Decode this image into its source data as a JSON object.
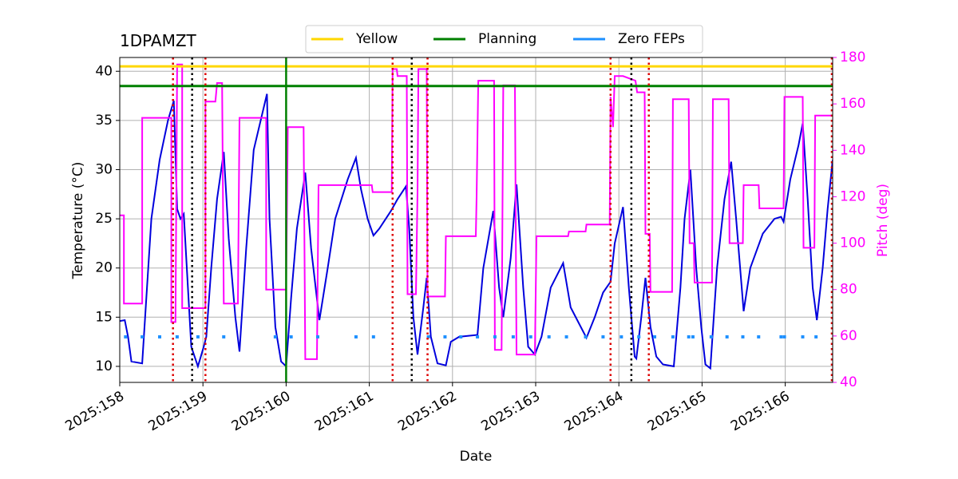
{
  "chart_data": {
    "type": "line",
    "title": "1DPAMZT",
    "xlabel": "Date",
    "ylabel": "Temperature (°C)",
    "y2label": "Pitch (deg)",
    "xlim": [
      158,
      166.57
    ],
    "ylim": [
      8.37,
      41.4
    ],
    "y2lim": [
      40,
      180
    ],
    "xticks": [
      {
        "value": 158,
        "label": "2025:158"
      },
      {
        "value": 159,
        "label": "2025:159"
      },
      {
        "value": 160,
        "label": "2025:160"
      },
      {
        "value": 161,
        "label": "2025:161"
      },
      {
        "value": 162,
        "label": "2025:162"
      },
      {
        "value": 163,
        "label": "2025:163"
      },
      {
        "value": 164,
        "label": "2025:164"
      },
      {
        "value": 165,
        "label": "2025:165"
      },
      {
        "value": 166,
        "label": "2025:166"
      }
    ],
    "yticks": [
      10,
      15,
      20,
      25,
      30,
      35,
      40
    ],
    "y2ticks": [
      40,
      60,
      80,
      100,
      120,
      140,
      160,
      180
    ],
    "grid": true,
    "legend": "top",
    "series": [
      {
        "color": "#0000dd",
        "x": [
          158.0,
          158.06,
          158.1,
          158.14,
          158.27,
          158.38,
          158.48,
          158.58,
          158.65,
          158.69,
          158.73,
          158.77,
          158.82,
          158.86,
          158.94,
          159.01,
          159.04,
          159.1,
          159.17,
          159.25,
          159.31,
          159.39,
          159.44,
          159.52,
          159.61,
          159.77,
          159.8,
          159.87,
          159.94,
          160.0,
          160.06,
          160.13,
          160.23,
          160.3,
          160.4,
          160.5,
          160.59,
          160.74,
          160.84,
          160.9,
          160.98,
          161.05,
          161.12,
          161.26,
          161.34,
          161.44,
          161.48,
          161.53,
          161.58,
          161.65,
          161.69,
          161.74,
          161.82,
          161.92,
          161.98,
          162.08,
          162.3,
          162.37,
          162.49,
          162.56,
          162.61,
          162.7,
          162.77,
          162.85,
          162.91,
          162.99,
          163.07,
          163.18,
          163.33,
          163.42,
          163.61,
          163.71,
          163.81,
          163.9,
          163.95,
          164.05,
          164.12,
          164.19,
          164.21,
          164.27,
          164.32,
          164.38,
          164.45,
          164.53,
          164.66,
          164.74,
          164.79,
          164.86,
          164.93,
          164.99,
          165.04,
          165.1,
          165.18,
          165.27,
          165.35,
          165.41,
          165.5,
          165.58,
          165.73,
          165.87,
          165.95,
          165.98,
          166.06,
          166.16,
          166.21,
          166.27,
          166.33,
          166.38,
          166.45,
          166.51,
          166.57
        ],
        "values": [
          14.6,
          14.7,
          13,
          10.5,
          10.3,
          25,
          31,
          35,
          37,
          26,
          25,
          25.5,
          18,
          12,
          10,
          12,
          13,
          20,
          27,
          31.8,
          23,
          15,
          11.5,
          22,
          32,
          37.7,
          25,
          14,
          10.5,
          10,
          17,
          24,
          29.7,
          22,
          14.7,
          20,
          25,
          29,
          31.2,
          28,
          25,
          23.3,
          24,
          25.8,
          27,
          28.3,
          24,
          15,
          11.2,
          16,
          19,
          13,
          10.3,
          10.1,
          12.5,
          13,
          13.2,
          20,
          25.8,
          18,
          15,
          21,
          28.5,
          18,
          12,
          11.2,
          13,
          18,
          20.5,
          16,
          12.9,
          15,
          17.5,
          18.6,
          22.5,
          26.2,
          18,
          11,
          10.8,
          15,
          19,
          14,
          11,
          10.2,
          10,
          18,
          25,
          30,
          20,
          14,
          10.2,
          9.8,
          20,
          27,
          30.8,
          25,
          15.6,
          20,
          23.5,
          25,
          25.2,
          24.7,
          29,
          32.5,
          34.7,
          27,
          18,
          14.7,
          20,
          26,
          31
        ]
      },
      {
        "color": "#ff00ff",
        "axis": "y2",
        "x": [
          158.0,
          158.05,
          158.05,
          158.27,
          158.27,
          158.62,
          158.62,
          158.67,
          158.69,
          158.75,
          158.75,
          159.03,
          159.03,
          159.15,
          159.17,
          159.23,
          159.25,
          159.42,
          159.44,
          159.76,
          159.76,
          160.0,
          160.02,
          160.21,
          160.23,
          160.37,
          160.39,
          161.03,
          161.04,
          161.27,
          161.28,
          161.33,
          161.34,
          161.45,
          161.46,
          161.56,
          161.58,
          161.59,
          161.69,
          161.7,
          161.91,
          161.92,
          162.28,
          162.29,
          162.31,
          162.5,
          162.51,
          162.59,
          162.61,
          162.75,
          162.77,
          162.99,
          163.01,
          163.39,
          163.4,
          163.6,
          163.61,
          163.89,
          163.9,
          163.93,
          163.95,
          164.05,
          164.2,
          164.22,
          164.31,
          164.32,
          164.37,
          164.38,
          164.64,
          164.65,
          164.84,
          164.85,
          164.9,
          164.91,
          165.12,
          165.13,
          165.32,
          165.33,
          165.49,
          165.5,
          165.68,
          165.69,
          165.98,
          165.99,
          166.21,
          166.22,
          166.35,
          166.36,
          166.57
        ],
        "values": [
          112,
          112,
          74,
          74,
          154,
          154,
          66,
          66,
          177,
          177,
          72,
          72,
          161,
          161,
          169,
          169,
          74,
          74,
          154,
          154,
          80,
          80,
          150,
          150,
          50,
          50,
          125,
          125,
          122,
          122,
          175,
          175,
          172,
          172,
          78,
          78,
          122,
          175,
          175,
          77,
          77,
          103,
          103,
          120,
          170,
          170,
          54,
          54,
          168,
          168,
          52,
          52,
          103,
          103,
          105,
          105,
          108,
          108,
          163,
          150,
          172,
          172,
          170,
          165,
          165,
          104,
          104,
          79,
          79,
          162,
          162,
          100,
          100,
          83,
          83,
          162,
          162,
          100,
          100,
          125,
          125,
          115,
          115,
          163,
          163,
          98,
          98,
          155,
          155
        ]
      },
      {
        "name": "Yellow",
        "color": "#ffd700",
        "kind": "hline",
        "values": [
          40.5
        ]
      },
      {
        "name": "Planning",
        "color": "#008000",
        "kind": "hline",
        "values": [
          38.5
        ]
      },
      {
        "name": "Zero FEPs",
        "color": "#1e90ff",
        "kind": "dots",
        "x": [
          158.07,
          158.27,
          158.48,
          158.69,
          158.94,
          159.25,
          159.87,
          160.06,
          160.38,
          160.84,
          161.05,
          161.71,
          161.91,
          162.1,
          162.3,
          162.51,
          162.73,
          162.94,
          163.16,
          163.37,
          163.6,
          163.81,
          164.03,
          164.24,
          164.43,
          164.65,
          164.84,
          164.89,
          165.11,
          165.3,
          165.49,
          165.68,
          165.95,
          165.99,
          166.21,
          166.37
        ],
        "values": [
          13,
          13,
          13,
          13,
          13,
          13,
          13,
          13,
          13,
          13,
          13,
          13,
          13,
          13,
          13,
          13,
          13,
          13,
          13,
          13,
          13,
          13,
          13,
          13,
          13,
          13,
          13,
          13,
          13,
          13,
          13,
          13,
          13,
          13,
          13,
          13
        ]
      }
    ],
    "vlines": [
      {
        "x": 158.64,
        "color": "#dd0000",
        "style": "dotted"
      },
      {
        "x": 159.03,
        "color": "#dd0000",
        "style": "dotted"
      },
      {
        "x": 161.28,
        "color": "#dd0000",
        "style": "dotted"
      },
      {
        "x": 161.7,
        "color": "#dd0000",
        "style": "dotted"
      },
      {
        "x": 163.9,
        "color": "#dd0000",
        "style": "dotted"
      },
      {
        "x": 164.36,
        "color": "#dd0000",
        "style": "dotted"
      },
      {
        "x": 166.56,
        "color": "#dd0000",
        "style": "dotted"
      },
      {
        "x": 158.87,
        "color": "#000000",
        "style": "dotted"
      },
      {
        "x": 161.51,
        "color": "#000000",
        "style": "dotted"
      },
      {
        "x": 164.15,
        "color": "#000000",
        "style": "dotted"
      },
      {
        "x": 160.0,
        "color": "#008000",
        "style": "solid"
      }
    ]
  }
}
